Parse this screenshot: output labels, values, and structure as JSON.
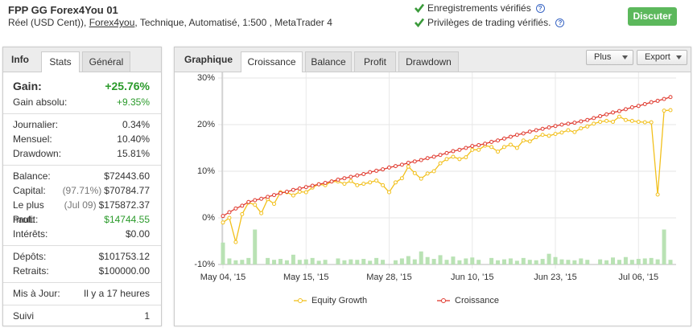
{
  "header": {
    "title": "FPP GG Forex4You 01",
    "subtitle": [
      "Réel (USD Cent)), ",
      "Forex4you",
      ", Technique, Automatisé, 1:500 , MetaTrader 4"
    ],
    "verifications": [
      {
        "text": "Enregistrements vérifiés",
        "help": "?"
      },
      {
        "text": "Privilèges de trading vérifiés.",
        "help": "?"
      }
    ],
    "button": "Discuter"
  },
  "left_panel": {
    "label": "Info",
    "tabs": [
      "Stats",
      "Général"
    ],
    "groups": [
      [
        {
          "label": "Gain:",
          "value": "+25.76%",
          "color": "#2a9a2a"
        },
        {
          "label": "Gain absolu:",
          "value": "+9.35%",
          "color": "#2a9a2a"
        }
      ],
      [
        {
          "label": "Journalier:",
          "value": "0.34%"
        },
        {
          "label": "Mensuel:",
          "value": "10.40%"
        },
        {
          "label": "Drawdown:",
          "value": "15.81%"
        }
      ],
      [
        {
          "label": "Balance:",
          "value": "$72443.60"
        },
        {
          "label": "Capital:",
          "note": "(97.71%)",
          "value": "$70784.77"
        },
        {
          "label": "Le plus haut:",
          "note": "(Jul 09)",
          "value": "$175872.37"
        },
        {
          "label": "Profit:",
          "value": "$14744.55",
          "color": "#2a9a2a"
        },
        {
          "label": "Intérêts:",
          "value": "$0.00"
        }
      ],
      [
        {
          "label": "Dépôts:",
          "value": "$101753.12"
        },
        {
          "label": "Retraits:",
          "value": "$100000.00"
        }
      ],
      [
        {
          "label": "Mis à Jour:",
          "value": "Il y a 17 heures"
        }
      ],
      [
        {
          "label": "Suivi",
          "value": "1"
        }
      ]
    ]
  },
  "chart_panel": {
    "label": "Graphique",
    "tabs": [
      "Croissance",
      "Balance",
      "Profit",
      "Drawdown"
    ],
    "buttons": [
      "Plus",
      "Export"
    ]
  },
  "chart_data": {
    "type": "line",
    "ylim": [
      -10,
      30
    ],
    "yticks": [
      {
        "value": -10,
        "label": "-10%"
      },
      {
        "value": 0,
        "label": "0%"
      },
      {
        "value": 10,
        "label": "10%"
      },
      {
        "value": 20,
        "label": "20%"
      },
      {
        "value": 30,
        "label": "30%"
      }
    ],
    "grid": true,
    "legend": "bottom",
    "categories": [
      "May 04, '15",
      null,
      null,
      null,
      null,
      null,
      null,
      null,
      null,
      null,
      null,
      null,
      null,
      "May 15, '15",
      null,
      null,
      null,
      null,
      null,
      null,
      null,
      null,
      null,
      null,
      null,
      null,
      "May 28, '15",
      null,
      null,
      null,
      null,
      null,
      null,
      null,
      null,
      null,
      null,
      null,
      null,
      "Jun 10, '15",
      null,
      null,
      null,
      null,
      null,
      null,
      null,
      null,
      null,
      null,
      null,
      null,
      "Jun 23, '15",
      null,
      null,
      null,
      null,
      null,
      null,
      null,
      null,
      null,
      null,
      null,
      null,
      "Jul 06, '15",
      null,
      null,
      null,
      null,
      null
    ],
    "series": [
      {
        "name": "Equity Growth",
        "color": "#f2c01c",
        "values": [
          -1.0,
          0.0,
          -5.2,
          0.8,
          3.3,
          2.8,
          1.0,
          4.0,
          3.0,
          5.5,
          5.5,
          4.8,
          5.6,
          5.5,
          6.5,
          7.2,
          7.0,
          7.8,
          7.8,
          7.3,
          7.9,
          7.0,
          7.3,
          7.6,
          8.0,
          7.0,
          5.5,
          7.6,
          8.5,
          11.0,
          9.6,
          8.4,
          9.5,
          10.0,
          11.7,
          12.6,
          13.1,
          12.6,
          13.0,
          14.6,
          14.6,
          15.5,
          15.2,
          14.2,
          15.2,
          15.7,
          15.0,
          16.6,
          16.4,
          17.3,
          17.8,
          17.6,
          18.0,
          18.3,
          18.8,
          18.4,
          19.2,
          19.6,
          20.2,
          20.6,
          20.8,
          20.6,
          21.7,
          21.0,
          20.8,
          20.6,
          20.5,
          20.5,
          5.0,
          23.0,
          23.1
        ]
      },
      {
        "name": "Croissance",
        "color": "#e03a2f",
        "values": [
          0.4,
          1.2,
          2.0,
          2.6,
          3.4,
          3.8,
          4.1,
          4.5,
          4.9,
          5.3,
          5.6,
          6.0,
          6.3,
          6.6,
          6.9,
          7.2,
          7.5,
          7.8,
          8.2,
          8.5,
          8.8,
          9.1,
          9.4,
          9.8,
          10.1,
          10.4,
          10.8,
          11.1,
          11.4,
          11.8,
          12.1,
          12.4,
          12.8,
          13.1,
          13.5,
          13.9,
          14.3,
          14.6,
          15.0,
          15.4,
          15.6,
          15.9,
          16.3,
          16.6,
          17.0,
          17.4,
          17.8,
          18.1,
          18.5,
          18.8,
          19.1,
          19.4,
          19.7,
          20.0,
          20.2,
          20.4,
          20.7,
          21.0,
          21.4,
          21.8,
          22.2,
          22.6,
          22.9,
          23.3,
          23.7,
          24.0,
          24.4,
          24.8,
          25.1,
          25.5,
          25.9
        ]
      },
      {
        "type": "bar",
        "color": "#b9e2b4",
        "values": [
          -5.3,
          -8.7,
          -9.1,
          -9.0,
          -8.6,
          -2.5,
          null,
          -8.6,
          -9.0,
          -8.8,
          -9.1,
          -7.9,
          -9.0,
          -8.9,
          -8.6,
          -9.2,
          -9.0,
          null,
          -8.7,
          -9.1,
          -8.9,
          -9.0,
          -8.8,
          -9.2,
          -8.6,
          -9.0,
          null,
          -9.1,
          -8.7,
          -8.2,
          -8.9,
          -7.2,
          -8.4,
          -8.8,
          -8.0,
          -9.0,
          -8.3,
          -9.1,
          -8.7,
          -8.5,
          -9.0,
          null,
          -8.6,
          -9.1,
          -8.9,
          -8.7,
          -9.2,
          -8.6,
          -9.0,
          -9.1,
          -8.8,
          -7.7,
          -8.4,
          -8.9,
          -9.0,
          -9.1,
          -8.7,
          -9.0,
          null,
          -8.9,
          -9.1,
          -8.5,
          -9.0,
          -8.4,
          -9.0,
          -8.8,
          -8.7,
          -8.6,
          -8.9,
          -2.5,
          -9.0
        ]
      }
    ]
  }
}
